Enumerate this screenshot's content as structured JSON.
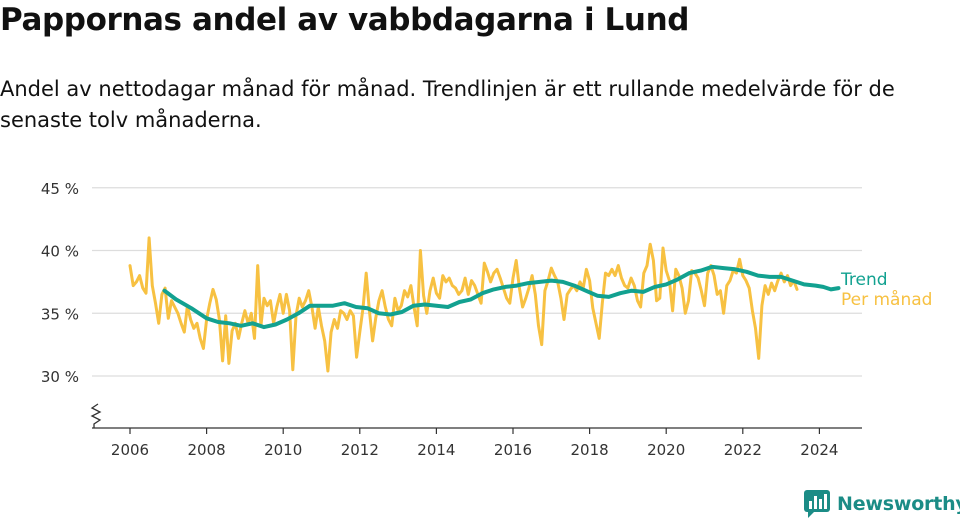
{
  "page": {
    "title": "Pappornas andel av vabbdagarna i Lund",
    "subtitle": "Andel av nettodagar månad för månad. Trendlinjen är ett rullande medelvärde för de senaste tolv månaderna."
  },
  "brand": {
    "name": "Newsworthy",
    "icon": "newsworthy-logo-icon",
    "color": "#1b8c86"
  },
  "colors": {
    "trend": "#12a190",
    "monthly": "#f7c142",
    "grid": "#dddddd",
    "axis": "#333333",
    "text": "#333333"
  },
  "chart_data": {
    "type": "line",
    "title": "Pappornas andel av vabbdagarna i Lund",
    "xlabel": "",
    "ylabel": "",
    "x_ticks": [
      2006,
      2008,
      2010,
      2012,
      2014,
      2016,
      2018,
      2020,
      2022,
      2024
    ],
    "y_ticks": [
      30,
      35,
      40,
      45
    ],
    "y_tick_labels": [
      "30 %",
      "35 %",
      "40 %",
      "45 %"
    ],
    "xlim": [
      2005.5,
      2025.2
    ],
    "ylim": [
      25.5,
      45
    ],
    "axis_break": true,
    "grid": true,
    "legend": "right, inline at line ends",
    "series": [
      {
        "name": "Per månad",
        "color": "#f7c142",
        "start": 2006.0,
        "step": 0.08333,
        "values": [
          38.8,
          37.2,
          37.5,
          38.0,
          37.0,
          36.6,
          41.0,
          37.2,
          35.8,
          34.2,
          36.5,
          37.0,
          34.6,
          36.0,
          35.5,
          35.0,
          34.2,
          33.5,
          35.6,
          34.5,
          33.8,
          34.2,
          33.0,
          32.2,
          34.5,
          35.8,
          36.9,
          36.1,
          34.5,
          31.2,
          34.8,
          31.0,
          33.6,
          34.2,
          33.0,
          34.2,
          35.2,
          34.2,
          35.0,
          33.0,
          38.8,
          34.0,
          36.2,
          35.6,
          36.0,
          34.2,
          35.5,
          36.5,
          35.0,
          36.5,
          35.2,
          30.5,
          34.8,
          36.2,
          35.5,
          36.0,
          36.8,
          35.5,
          33.8,
          35.5,
          34.0,
          32.8,
          30.4,
          33.5,
          34.5,
          33.8,
          35.2,
          35.0,
          34.5,
          35.2,
          34.8,
          31.5,
          33.5,
          35.4,
          38.2,
          35.2,
          32.8,
          34.6,
          36.0,
          36.8,
          35.5,
          34.5,
          34.0,
          36.2,
          35.2,
          35.6,
          36.8,
          36.3,
          37.2,
          35.5,
          34.0,
          40.0,
          36.4,
          35.0,
          36.8,
          37.8,
          36.6,
          36.2,
          38.0,
          37.5,
          37.8,
          37.2,
          37.0,
          36.5,
          36.8,
          37.8,
          36.5,
          37.6,
          37.2,
          36.5,
          35.8,
          39.0,
          38.3,
          37.5,
          38.2,
          38.5,
          37.8,
          37.0,
          36.2,
          35.8,
          37.8,
          39.2,
          37.0,
          35.5,
          36.2,
          37.0,
          38.0,
          36.5,
          34.0,
          32.5,
          36.8,
          37.6,
          38.6,
          38.0,
          37.5,
          36.2,
          34.5,
          36.5,
          36.9,
          37.2,
          36.8,
          37.5,
          37.0,
          38.5,
          37.6,
          35.4,
          34.2,
          33.0,
          35.8,
          38.2,
          38.0,
          38.5,
          38.0,
          38.8,
          37.8,
          37.2,
          37.0,
          37.8,
          37.2,
          36.0,
          35.5,
          38.2,
          38.8,
          40.5,
          39.2,
          36.0,
          36.2,
          40.2,
          38.4,
          37.6,
          35.2,
          38.5,
          38.0,
          37.0,
          35.0,
          36.0,
          38.4,
          38.2,
          37.8,
          36.8,
          35.6,
          38.2,
          38.8,
          38.0,
          36.5,
          36.8,
          35.0,
          37.2,
          37.6,
          38.4,
          38.2,
          39.3,
          38.0,
          37.6,
          37.0,
          35.2,
          33.8,
          31.4,
          35.6,
          37.2,
          36.5,
          37.4,
          36.8,
          37.6,
          38.2,
          37.5,
          38.0,
          37.2,
          37.6,
          36.9
        ]
      },
      {
        "name": "Trend",
        "color": "#12a190",
        "points": [
          [
            2006.9,
            36.8
          ],
          [
            2007.2,
            36.1
          ],
          [
            2007.6,
            35.4
          ],
          [
            2008.0,
            34.6
          ],
          [
            2008.3,
            34.3
          ],
          [
            2008.6,
            34.2
          ],
          [
            2008.9,
            34.0
          ],
          [
            2009.2,
            34.2
          ],
          [
            2009.5,
            33.9
          ],
          [
            2009.8,
            34.1
          ],
          [
            2010.1,
            34.5
          ],
          [
            2010.4,
            35.0
          ],
          [
            2010.7,
            35.6
          ],
          [
            2011.0,
            35.6
          ],
          [
            2011.3,
            35.6
          ],
          [
            2011.6,
            35.8
          ],
          [
            2011.9,
            35.5
          ],
          [
            2012.2,
            35.4
          ],
          [
            2012.5,
            35.0
          ],
          [
            2012.8,
            34.9
          ],
          [
            2013.1,
            35.1
          ],
          [
            2013.4,
            35.6
          ],
          [
            2013.7,
            35.7
          ],
          [
            2014.0,
            35.6
          ],
          [
            2014.3,
            35.5
          ],
          [
            2014.6,
            35.9
          ],
          [
            2014.9,
            36.1
          ],
          [
            2015.2,
            36.6
          ],
          [
            2015.5,
            36.9
          ],
          [
            2015.8,
            37.1
          ],
          [
            2016.1,
            37.2
          ],
          [
            2016.4,
            37.4
          ],
          [
            2016.7,
            37.5
          ],
          [
            2017.0,
            37.6
          ],
          [
            2017.3,
            37.5
          ],
          [
            2017.6,
            37.2
          ],
          [
            2017.9,
            36.8
          ],
          [
            2018.2,
            36.4
          ],
          [
            2018.5,
            36.3
          ],
          [
            2018.8,
            36.6
          ],
          [
            2019.1,
            36.8
          ],
          [
            2019.4,
            36.7
          ],
          [
            2019.7,
            37.1
          ],
          [
            2020.0,
            37.3
          ],
          [
            2020.3,
            37.7
          ],
          [
            2020.6,
            38.2
          ],
          [
            2020.9,
            38.4
          ],
          [
            2021.2,
            38.7
          ],
          [
            2021.5,
            38.6
          ],
          [
            2021.8,
            38.5
          ],
          [
            2022.1,
            38.3
          ],
          [
            2022.4,
            38.0
          ],
          [
            2022.7,
            37.9
          ],
          [
            2023.0,
            37.9
          ],
          [
            2023.3,
            37.6
          ],
          [
            2023.6,
            37.3
          ],
          [
            2023.9,
            37.2
          ],
          [
            2024.1,
            37.1
          ],
          [
            2024.3,
            36.9
          ],
          [
            2024.5,
            37.0
          ]
        ]
      }
    ]
  }
}
